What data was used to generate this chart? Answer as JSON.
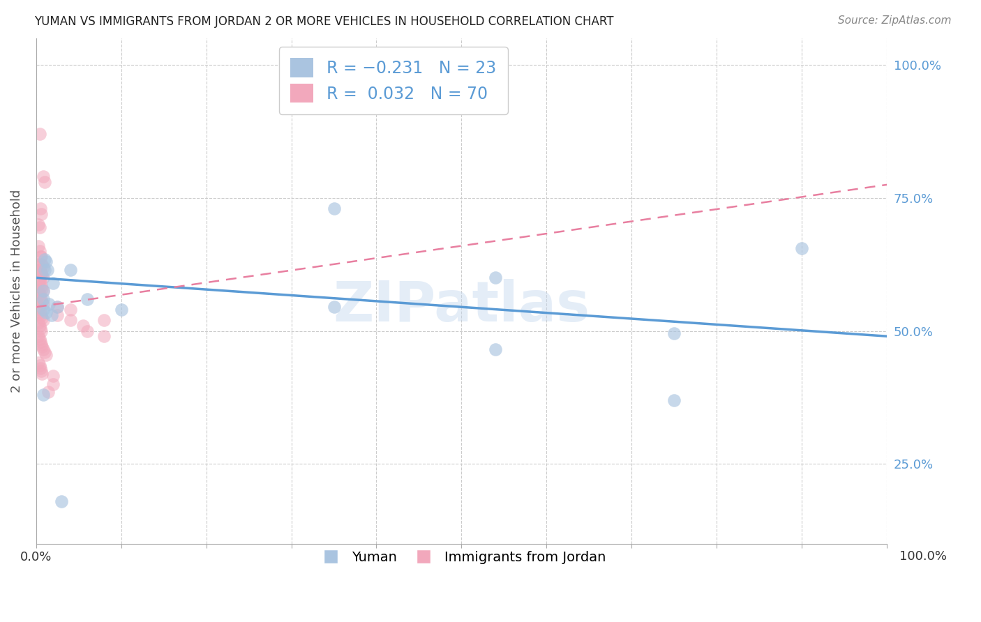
{
  "title": "YUMAN VS IMMIGRANTS FROM JORDAN 2 OR MORE VEHICLES IN HOUSEHOLD CORRELATION CHART",
  "source": "Source: ZipAtlas.com",
  "ylabel": "2 or more Vehicles in Household",
  "legend_label1": "Yuman",
  "legend_label2": "Immigrants from Jordan",
  "blue_color": "#aac4e0",
  "pink_color": "#f2a8bc",
  "line_blue": "#5b9bd5",
  "line_pink": "#e87fa0",
  "watermark": "ZIPatlas",
  "blue_scatter": [
    [
      0.01,
      0.635
    ],
    [
      0.012,
      0.63
    ],
    [
      0.01,
      0.615
    ],
    [
      0.013,
      0.615
    ],
    [
      0.04,
      0.615
    ],
    [
      0.02,
      0.59
    ],
    [
      0.008,
      0.575
    ],
    [
      0.008,
      0.56
    ],
    [
      0.015,
      0.55
    ],
    [
      0.025,
      0.545
    ],
    [
      0.008,
      0.54
    ],
    [
      0.012,
      0.535
    ],
    [
      0.018,
      0.53
    ],
    [
      0.06,
      0.56
    ],
    [
      0.1,
      0.54
    ],
    [
      0.35,
      0.545
    ],
    [
      0.35,
      0.73
    ],
    [
      0.54,
      0.6
    ],
    [
      0.54,
      0.465
    ],
    [
      0.75,
      0.495
    ],
    [
      0.75,
      0.37
    ],
    [
      0.9,
      0.655
    ],
    [
      0.008,
      0.38
    ],
    [
      0.03,
      0.18
    ]
  ],
  "pink_scatter": [
    [
      0.004,
      0.87
    ],
    [
      0.008,
      0.79
    ],
    [
      0.01,
      0.78
    ],
    [
      0.005,
      0.73
    ],
    [
      0.006,
      0.72
    ],
    [
      0.003,
      0.7
    ],
    [
      0.004,
      0.695
    ],
    [
      0.003,
      0.66
    ],
    [
      0.004,
      0.65
    ],
    [
      0.005,
      0.64
    ],
    [
      0.006,
      0.64
    ],
    [
      0.003,
      0.625
    ],
    [
      0.005,
      0.625
    ],
    [
      0.007,
      0.625
    ],
    [
      0.008,
      0.62
    ],
    [
      0.003,
      0.615
    ],
    [
      0.004,
      0.615
    ],
    [
      0.005,
      0.61
    ],
    [
      0.006,
      0.61
    ],
    [
      0.007,
      0.605
    ],
    [
      0.008,
      0.6
    ],
    [
      0.003,
      0.595
    ],
    [
      0.004,
      0.595
    ],
    [
      0.005,
      0.59
    ],
    [
      0.006,
      0.585
    ],
    [
      0.007,
      0.58
    ],
    [
      0.008,
      0.575
    ],
    [
      0.003,
      0.57
    ],
    [
      0.004,
      0.57
    ],
    [
      0.005,
      0.565
    ],
    [
      0.006,
      0.56
    ],
    [
      0.007,
      0.555
    ],
    [
      0.008,
      0.55
    ],
    [
      0.003,
      0.545
    ],
    [
      0.004,
      0.54
    ],
    [
      0.005,
      0.535
    ],
    [
      0.006,
      0.53
    ],
    [
      0.007,
      0.525
    ],
    [
      0.008,
      0.52
    ],
    [
      0.003,
      0.515
    ],
    [
      0.004,
      0.51
    ],
    [
      0.005,
      0.505
    ],
    [
      0.006,
      0.5
    ],
    [
      0.003,
      0.49
    ],
    [
      0.004,
      0.485
    ],
    [
      0.005,
      0.48
    ],
    [
      0.006,
      0.475
    ],
    [
      0.007,
      0.47
    ],
    [
      0.008,
      0.465
    ],
    [
      0.01,
      0.46
    ],
    [
      0.012,
      0.455
    ],
    [
      0.003,
      0.44
    ],
    [
      0.004,
      0.435
    ],
    [
      0.005,
      0.43
    ],
    [
      0.006,
      0.425
    ],
    [
      0.007,
      0.42
    ],
    [
      0.025,
      0.545
    ],
    [
      0.025,
      0.53
    ],
    [
      0.04,
      0.54
    ],
    [
      0.04,
      0.52
    ],
    [
      0.055,
      0.51
    ],
    [
      0.06,
      0.5
    ],
    [
      0.08,
      0.49
    ],
    [
      0.08,
      0.52
    ],
    [
      0.02,
      0.415
    ],
    [
      0.02,
      0.4
    ],
    [
      0.014,
      0.385
    ]
  ],
  "blue_line": {
    "x0": 0.0,
    "y0": 0.6,
    "x1": 1.0,
    "y1": 0.49
  },
  "pink_line": {
    "x0": 0.0,
    "y0": 0.545,
    "x1": 1.0,
    "y1": 0.775
  },
  "xlim": [
    0.0,
    1.0
  ],
  "ylim": [
    0.1,
    1.05
  ],
  "yticks": [
    0.25,
    0.5,
    0.75,
    1.0
  ],
  "xtick_positions": [
    0.0,
    0.1,
    0.2,
    0.3,
    0.4,
    0.5,
    0.6,
    0.7,
    0.8,
    0.9,
    1.0
  ]
}
